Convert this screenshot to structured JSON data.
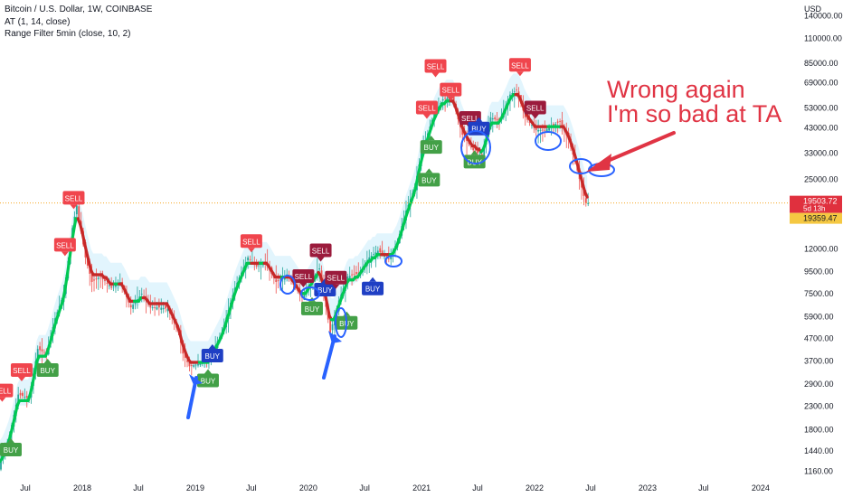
{
  "legend": {
    "symbol_line": "Bitcoin / U.S. Dollar, 1W, COINBASE",
    "indicator_1": "AT (1, 14, close)",
    "indicator_2": "Range Filter  5min (close, 10, 2)"
  },
  "annotation": {
    "line_1": "Wrong again",
    "line_2": "I'm so bad at TA",
    "color": "#e03444"
  },
  "price_axis": {
    "currency": "USD",
    "scale": "log",
    "labels": [
      {
        "label": "140000.00",
        "value": 140000
      },
      {
        "label": "110000.00",
        "value": 110000
      },
      {
        "label": "85000.00",
        "value": 85000
      },
      {
        "label": "69000.00",
        "value": 69000
      },
      {
        "label": "53000.00",
        "value": 53000
      },
      {
        "label": "43000.00",
        "value": 43000
      },
      {
        "label": "33000.00",
        "value": 33000
      },
      {
        "label": "25000.00",
        "value": 25000
      },
      {
        "label": "12000.00",
        "value": 12000
      },
      {
        "label": "9500.00",
        "value": 9500
      },
      {
        "label": "7500.00",
        "value": 7500
      },
      {
        "label": "5900.00",
        "value": 5900
      },
      {
        "label": "4700.00",
        "value": 4700
      },
      {
        "label": "3700.00",
        "value": 3700
      },
      {
        "label": "2900.00",
        "value": 2900
      },
      {
        "label": "2300.00",
        "value": 2300
      },
      {
        "label": "1800.00",
        "value": 1800
      },
      {
        "label": "1440.00",
        "value": 1440
      },
      {
        "label": "1160.00",
        "value": 1160
      }
    ],
    "last_price": {
      "label": "19503.72",
      "value": 19503.72,
      "countdown": "5d 13h",
      "color": "#e0303e"
    },
    "other_price": {
      "label": "19359.47",
      "value": 19359.47,
      "color": "#f5c842"
    }
  },
  "time_axis": {
    "labels": [
      {
        "label": "Jul",
        "date": "2017-07-01"
      },
      {
        "label": "2018",
        "date": "2018-01-01"
      },
      {
        "label": "Jul",
        "date": "2018-07-01"
      },
      {
        "label": "2019",
        "date": "2019-01-01"
      },
      {
        "label": "Jul",
        "date": "2019-07-01"
      },
      {
        "label": "2020",
        "date": "2020-01-01"
      },
      {
        "label": "Jul",
        "date": "2020-07-01"
      },
      {
        "label": "2021",
        "date": "2021-01-01"
      },
      {
        "label": "Jul",
        "date": "2021-07-01"
      },
      {
        "label": "2022",
        "date": "2022-01-01"
      },
      {
        "label": "Jul",
        "date": "2022-07-01"
      },
      {
        "label": "2023",
        "date": "2023-01-01"
      },
      {
        "label": "Jul",
        "date": "2023-07-01"
      },
      {
        "label": "2024",
        "date": "2024-01-01"
      }
    ]
  },
  "chart_data": {
    "type": "line",
    "x_axis": "date",
    "y_axis": "price (USD)",
    "y_scale": "log",
    "x_range": [
      "2017-04-10",
      "2024-04-01"
    ],
    "y_range": [
      1070,
      165000
    ],
    "series": [
      {
        "x": [
          "2017-04-10",
          "2017-05-15",
          "2017-06-12",
          "2017-07-17",
          "2017-08-14",
          "2017-09-11",
          "2017-10-09",
          "2017-11-06",
          "2017-12-04",
          "2017-12-18",
          "2018-01-15",
          "2018-02-05",
          "2018-03-05",
          "2018-04-09",
          "2018-05-07",
          "2018-06-11",
          "2018-07-16",
          "2018-08-13",
          "2018-09-10",
          "2018-10-08",
          "2018-11-12",
          "2018-11-26",
          "2018-12-17",
          "2019-01-21",
          "2019-02-18",
          "2019-04-01",
          "2019-05-13",
          "2019-06-24",
          "2019-07-22",
          "2019-08-19",
          "2019-09-23",
          "2019-10-28",
          "2019-12-16",
          "2020-01-13",
          "2020-02-10",
          "2020-03-16",
          "2020-04-13",
          "2020-05-11",
          "2020-06-15",
          "2020-07-20",
          "2020-08-17",
          "2020-09-21",
          "2020-10-19",
          "2020-11-16",
          "2020-12-14",
          "2021-01-04",
          "2021-02-15",
          "2021-03-15",
          "2021-04-12",
          "2021-05-17",
          "2021-06-21",
          "2021-07-19",
          "2021-08-16",
          "2021-09-13",
          "2021-10-18",
          "2021-11-08",
          "2021-12-06",
          "2022-01-10",
          "2022-02-07",
          "2022-03-28",
          "2022-04-25",
          "2022-05-16",
          "2022-06-13",
          "2022-06-20"
        ],
        "y": [
          1200,
          1700,
          2600,
          2500,
          4200,
          4000,
          5800,
          7500,
          15000,
          19000,
          11000,
          8500,
          9000,
          8000,
          8500,
          6500,
          7500,
          6500,
          6500,
          6400,
          5000,
          4000,
          3500,
          3600,
          3800,
          5000,
          8000,
          11000,
          10000,
          10500,
          8500,
          9200,
          7200,
          8500,
          9800,
          5000,
          7000,
          9000,
          9300,
          11000,
          11800,
          10800,
          13000,
          18000,
          23000,
          33000,
          50000,
          58000,
          60000,
          40000,
          34000,
          32000,
          48000,
          46000,
          61000,
          64000,
          48000,
          42000,
          42000,
          46000,
          38000,
          30000,
          21000,
          19503.72
        ]
      }
    ],
    "signals": [
      {
        "label": "SELL",
        "date": "2017-04-17",
        "value": 2700
      },
      {
        "label": "BUY",
        "date": "2017-05-15",
        "value": 1450
      },
      {
        "label": "SELL",
        "date": "2017-06-19",
        "value": 3350
      },
      {
        "label": "BUY",
        "date": "2017-09-11",
        "value": 3350
      },
      {
        "label": "SELL",
        "date": "2017-12-04",
        "value": 20500
      },
      {
        "label": "SELL",
        "date": "2017-11-06",
        "value": 12500
      },
      {
        "label": "BUY",
        "date": "2019-02-25",
        "value": 3900
      },
      {
        "label": "BUY",
        "date": "2019-02-11",
        "value": 3000
      },
      {
        "label": "SELL",
        "date": "2019-07-01",
        "value": 13000
      },
      {
        "label": "SELL",
        "date": "2019-12-16",
        "value": 9000
      },
      {
        "label": "SELL",
        "date": "2020-02-10",
        "value": 11800
      },
      {
        "label": "BUY",
        "date": "2020-02-24",
        "value": 7800
      },
      {
        "label": "BUY",
        "date": "2020-01-13",
        "value": 6400
      },
      {
        "label": "SELL",
        "date": "2020-03-30",
        "value": 8850
      },
      {
        "label": "BUY",
        "date": "2020-05-04",
        "value": 5500
      },
      {
        "label": "BUY",
        "date": "2020-07-27",
        "value": 7900
      },
      {
        "label": "SELL",
        "date": "2021-01-18",
        "value": 53000
      },
      {
        "label": "SELL",
        "date": "2021-02-15",
        "value": 82000
      },
      {
        "label": "SELL",
        "date": "2021-04-05",
        "value": 64000
      },
      {
        "label": "BUY",
        "date": "2021-02-01",
        "value": 35000
      },
      {
        "label": "BUY",
        "date": "2021-01-25",
        "value": 24800
      },
      {
        "label": "SELL",
        "date": "2021-06-07",
        "value": 47500
      },
      {
        "label": "BUY",
        "date": "2021-07-05",
        "value": 42500
      },
      {
        "label": "BUY",
        "date": "2021-06-21",
        "value": 30000
      },
      {
        "label": "SELL",
        "date": "2021-11-15",
        "value": 83000
      },
      {
        "label": "SELL",
        "date": "2022-01-03",
        "value": 53000
      }
    ]
  }
}
